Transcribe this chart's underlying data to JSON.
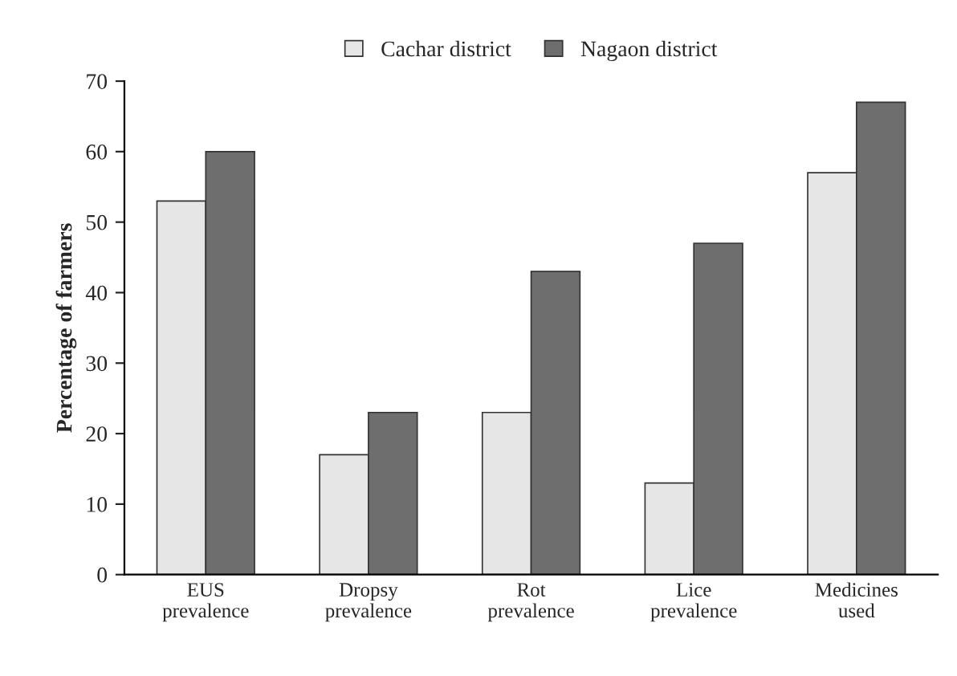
{
  "chart_data": {
    "type": "bar",
    "ylabel": "Percentage of farmers",
    "categories": [
      "EUS\nprevalence",
      "Dropsy\nprevalence",
      "Rot\nprevalence",
      "Lice\nprevalence",
      "Medicines\nused"
    ],
    "series": [
      {
        "name": "Cachar district",
        "color": "#e6e6e6",
        "values": [
          53,
          17,
          23,
          13,
          57
        ]
      },
      {
        "name": "Nagaon district",
        "color": "#6e6e6e",
        "values": [
          60,
          23,
          43,
          47,
          67
        ]
      }
    ],
    "ylim": [
      0,
      70
    ],
    "yticks": [
      0,
      10,
      20,
      30,
      40,
      50,
      60,
      70
    ],
    "grid": false,
    "legend": "top"
  }
}
